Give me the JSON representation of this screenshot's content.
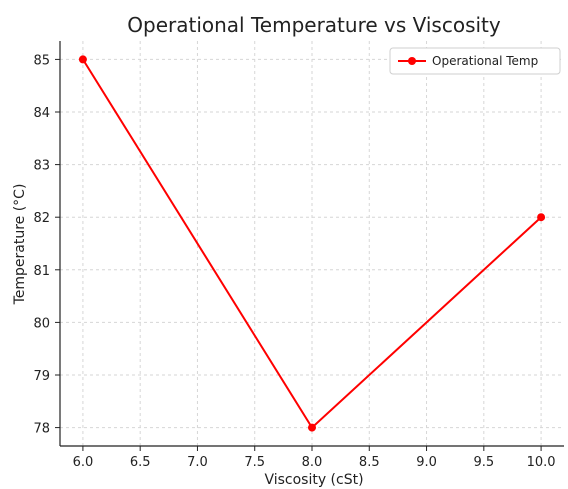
{
  "chart_data": {
    "type": "line",
    "title": "Operational Temperature vs Viscosity",
    "xlabel": "Viscosity (cSt)",
    "ylabel": "Temperature (°C)",
    "x": [
      6.0,
      8.0,
      10.0
    ],
    "series": [
      {
        "name": "Operational Temp",
        "values": [
          85,
          78,
          82
        ],
        "color": "#ff0000",
        "marker": "circle"
      }
    ],
    "xlim": [
      5.8,
      10.2
    ],
    "ylim": [
      77.65,
      85.35
    ],
    "xticks": [
      "6.0",
      "6.5",
      "7.0",
      "7.5",
      "8.0",
      "8.5",
      "9.0",
      "9.5",
      "10.0"
    ],
    "yticks": [
      "78",
      "79",
      "80",
      "81",
      "82",
      "83",
      "84",
      "85"
    ],
    "grid": true,
    "legend_position": "top-right"
  }
}
